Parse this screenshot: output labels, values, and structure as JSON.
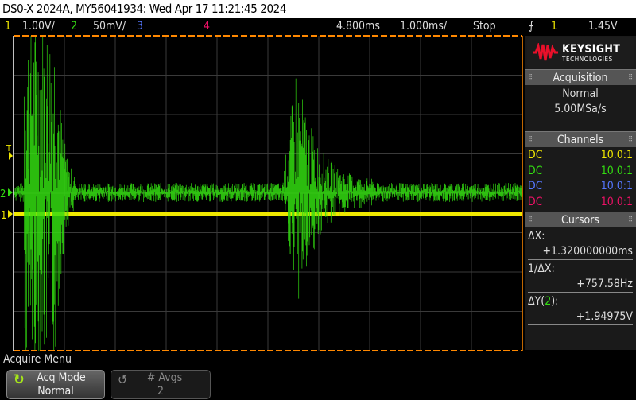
{
  "title": "DS0-X 2024A, MY56041934: Wed Apr 17 11:21:45 2024",
  "status": {
    "ch1": "1",
    "ch1_scale": "1.00V/",
    "ch2": "2",
    "ch2_scale": "50mV/",
    "ch3": "3",
    "ch4": "4",
    "delay": "4.800ms",
    "timebase": "1.000ms/",
    "run_state": "Stop",
    "trigger_source": "1",
    "trigger_level": "1.45V"
  },
  "colors": {
    "ch1": "#f0e800",
    "ch2": "#33dd11",
    "ch3": "#5577ff",
    "ch4": "#ee1166",
    "accent": "#ff8800"
  },
  "markers": {
    "trigger": "T",
    "ch1": "1",
    "ch2": "2"
  },
  "logo": {
    "line1": "KEYSIGHT",
    "line2": "TECHNOLOGIES"
  },
  "acquisition": {
    "header": "Acquisition",
    "mode": "Normal",
    "rate": "5.00MSa/s"
  },
  "channels": {
    "header": "Channels",
    "rows": [
      {
        "coupling": "DC",
        "probe": "10.0:1"
      },
      {
        "coupling": "DC",
        "probe": "10.0:1"
      },
      {
        "coupling": "DC",
        "probe": "10.0:1"
      },
      {
        "coupling": "DC",
        "probe": "10.0:1"
      }
    ]
  },
  "cursors": {
    "header": "Cursors",
    "dx_label": "ΔX:",
    "dx_value": "+1.320000000ms",
    "inv_label": "1/ΔX:",
    "inv_value": "+757.58Hz",
    "dy_label_pre": "ΔY(",
    "dy_channel": "2",
    "dy_label_post": "):",
    "dy_value": "+1.94975V"
  },
  "menu": {
    "title": "Acquire Menu",
    "acq_mode_label": "Acq Mode",
    "acq_mode_value": "Normal",
    "avgs_label": "# Avgs",
    "avgs_value": "2"
  }
}
